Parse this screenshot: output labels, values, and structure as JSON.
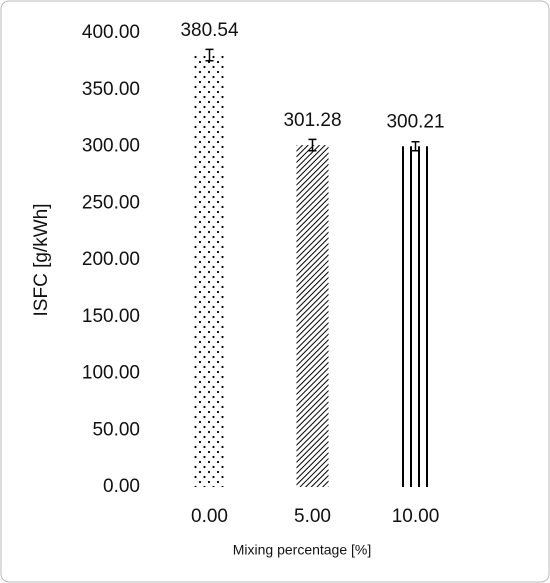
{
  "chart_data": {
    "type": "bar",
    "y_label": "ISFC [g/kWh]",
    "x_label": "Mixing percentage [%]",
    "categories": [
      "0.00",
      "5.00",
      "10.00"
    ],
    "values": [
      380.54,
      301.28,
      300.21
    ],
    "errors": [
      5,
      5,
      4
    ],
    "color": "#000000",
    "ylim": [
      0,
      400
    ],
    "yticks": [
      {
        "value": 0,
        "label": "0.00"
      },
      {
        "value": 50,
        "label": "50.00"
      },
      {
        "value": 100,
        "label": "100.00"
      },
      {
        "value": 150,
        "label": "150.00"
      },
      {
        "value": 200,
        "label": "200.00"
      },
      {
        "value": 250,
        "label": "250.00"
      },
      {
        "value": 300,
        "label": "300.00"
      },
      {
        "value": 350,
        "label": "350.00"
      },
      {
        "value": 400,
        "label": "400.00"
      }
    ]
  }
}
